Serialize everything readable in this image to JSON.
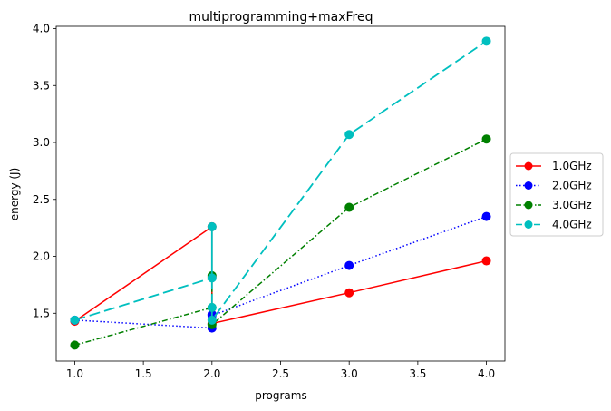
{
  "chart_data": {
    "type": "line",
    "title": "multiprogramming+maxFreq",
    "xlabel": "programs",
    "ylabel": "energy (J)",
    "xlim": [
      0.865,
      4.135
    ],
    "ylim": [
      1.08,
      4.02
    ],
    "xticks": [
      "1.0",
      "1.5",
      "2.0",
      "2.5",
      "3.0",
      "3.5",
      "4.0"
    ],
    "yticks": [
      "1.5",
      "2.0",
      "2.5",
      "3.0",
      "3.5",
      "4.0"
    ],
    "legend_position": "center-right-outside",
    "grid": false,
    "series": [
      {
        "name": "1.0GHz",
        "color": "#ff0000",
        "linestyle": "solid",
        "x": [
          1,
          2,
          2,
          2,
          3,
          4
        ],
        "y": [
          1.43,
          2.26,
          1.82,
          1.41,
          1.68,
          1.96
        ]
      },
      {
        "name": "2.0GHz",
        "color": "#0000ff",
        "linestyle": "dotted",
        "x": [
          1,
          2,
          2,
          2,
          3,
          4
        ],
        "y": [
          1.44,
          1.37,
          1.49,
          1.48,
          1.92,
          2.35
        ]
      },
      {
        "name": "3.0GHz",
        "color": "#008000",
        "linestyle": "dashdot",
        "x": [
          1,
          2,
          2,
          2,
          3,
          4
        ],
        "y": [
          1.22,
          1.55,
          1.83,
          1.4,
          2.43,
          3.03
        ]
      },
      {
        "name": "4.0GHz",
        "color": "#00bfbf",
        "linestyle": "dashed",
        "x": [
          1,
          2,
          2,
          2,
          2,
          3,
          4
        ],
        "y": [
          1.44,
          1.81,
          2.26,
          1.55,
          1.44,
          3.07,
          3.89
        ]
      }
    ]
  }
}
